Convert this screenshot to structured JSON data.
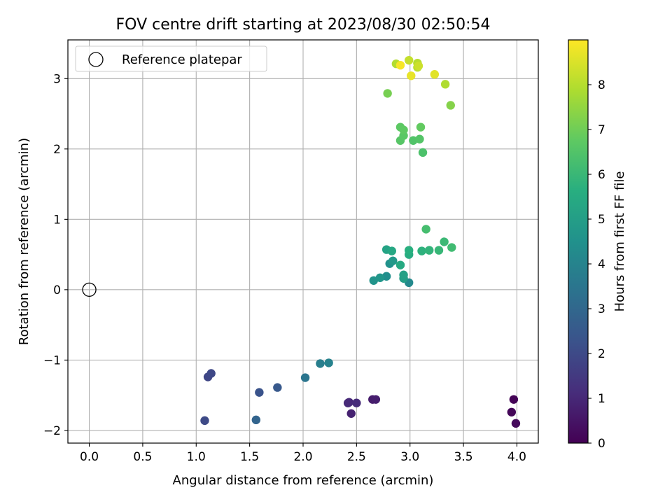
{
  "chart_data": {
    "type": "scatter",
    "title": "FOV centre drift starting at 2023/08/30 02:50:54",
    "xlabel": "Angular distance from reference (arcmin)",
    "ylabel": "Rotation from reference (arcmin)",
    "xlim": [
      -0.2,
      4.2
    ],
    "ylim": [
      -2.18,
      3.55
    ],
    "xticks": [
      0.0,
      0.5,
      1.0,
      1.5,
      2.0,
      2.5,
      3.0,
      3.5,
      4.0
    ],
    "xtick_labels": [
      "0.0",
      "0.5",
      "1.0",
      "1.5",
      "2.0",
      "2.5",
      "3.0",
      "3.5",
      "4.0"
    ],
    "yticks": [
      -2,
      -1,
      0,
      1,
      2,
      3
    ],
    "ytick_labels": [
      "−2",
      "−1",
      "0",
      "1",
      "2",
      "3"
    ],
    "grid": true,
    "legend": {
      "location": "upper-left",
      "label": "Reference platepar",
      "marker": "open-circle"
    },
    "reference_point": {
      "x": 0.0,
      "y": 0.0
    },
    "colorbar": {
      "label": "Hours from first FF file",
      "colormap": "viridis",
      "range": [
        0,
        9.0
      ],
      "ticks": [
        0,
        1,
        2,
        3,
        4,
        5,
        6,
        7,
        8
      ],
      "tick_labels": [
        "0",
        "1",
        "2",
        "3",
        "4",
        "5",
        "6",
        "7",
        "8"
      ]
    },
    "points": [
      {
        "x": 3.97,
        "y": -1.56,
        "h": 0.05
      },
      {
        "x": 3.95,
        "y": -1.74,
        "h": 0.12
      },
      {
        "x": 3.99,
        "y": -1.9,
        "h": 0.2
      },
      {
        "x": 2.65,
        "y": -1.56,
        "h": 0.7
      },
      {
        "x": 2.68,
        "y": -1.56,
        "h": 0.75
      },
      {
        "x": 2.45,
        "y": -1.76,
        "h": 0.85
      },
      {
        "x": 2.43,
        "y": -1.6,
        "h": 1.0
      },
      {
        "x": 2.42,
        "y": -1.61,
        "h": 1.05
      },
      {
        "x": 2.5,
        "y": -1.61,
        "h": 1.1
      },
      {
        "x": 1.11,
        "y": -1.24,
        "h": 1.9
      },
      {
        "x": 1.14,
        "y": -1.19,
        "h": 1.95
      },
      {
        "x": 1.08,
        "y": -1.86,
        "h": 2.0
      },
      {
        "x": 1.59,
        "y": -1.46,
        "h": 2.3
      },
      {
        "x": 1.76,
        "y": -1.39,
        "h": 2.5
      },
      {
        "x": 1.56,
        "y": -1.85,
        "h": 2.9
      },
      {
        "x": 2.02,
        "y": -1.25,
        "h": 3.5
      },
      {
        "x": 2.16,
        "y": -1.05,
        "h": 3.8
      },
      {
        "x": 2.24,
        "y": -1.04,
        "h": 3.95
      },
      {
        "x": 2.99,
        "y": 0.1,
        "h": 4.2
      },
      {
        "x": 2.78,
        "y": 0.19,
        "h": 4.4
      },
      {
        "x": 2.81,
        "y": 0.37,
        "h": 4.5
      },
      {
        "x": 2.66,
        "y": 0.13,
        "h": 4.6
      },
      {
        "x": 2.72,
        "y": 0.17,
        "h": 4.7
      },
      {
        "x": 2.84,
        "y": 0.41,
        "h": 4.8
      },
      {
        "x": 2.94,
        "y": 0.16,
        "h": 5.0
      },
      {
        "x": 2.94,
        "y": 0.21,
        "h": 5.1
      },
      {
        "x": 2.78,
        "y": 0.57,
        "h": 5.2
      },
      {
        "x": 2.83,
        "y": 0.55,
        "h": 5.35
      },
      {
        "x": 2.91,
        "y": 0.35,
        "h": 5.45
      },
      {
        "x": 2.99,
        "y": 0.5,
        "h": 5.55
      },
      {
        "x": 2.99,
        "y": 0.56,
        "h": 5.65
      },
      {
        "x": 3.11,
        "y": 0.55,
        "h": 5.75
      },
      {
        "x": 3.18,
        "y": 0.56,
        "h": 5.85
      },
      {
        "x": 3.27,
        "y": 0.56,
        "h": 5.95
      },
      {
        "x": 3.32,
        "y": 0.68,
        "h": 6.05
      },
      {
        "x": 3.39,
        "y": 0.6,
        "h": 6.15
      },
      {
        "x": 3.15,
        "y": 0.86,
        "h": 6.25
      },
      {
        "x": 3.12,
        "y": 1.95,
        "h": 6.4
      },
      {
        "x": 3.03,
        "y": 2.12,
        "h": 6.5
      },
      {
        "x": 3.09,
        "y": 2.14,
        "h": 6.55
      },
      {
        "x": 2.91,
        "y": 2.12,
        "h": 6.6
      },
      {
        "x": 2.94,
        "y": 2.19,
        "h": 6.65
      },
      {
        "x": 2.91,
        "y": 2.31,
        "h": 6.7
      },
      {
        "x": 2.94,
        "y": 2.27,
        "h": 6.75
      },
      {
        "x": 3.1,
        "y": 2.31,
        "h": 6.8
      },
      {
        "x": 2.79,
        "y": 2.79,
        "h": 7.1
      },
      {
        "x": 3.38,
        "y": 2.62,
        "h": 7.3
      },
      {
        "x": 3.33,
        "y": 2.92,
        "h": 7.9
      },
      {
        "x": 2.87,
        "y": 3.21,
        "h": 7.95
      },
      {
        "x": 3.07,
        "y": 3.22,
        "h": 8.0
      },
      {
        "x": 3.07,
        "y": 3.16,
        "h": 8.05
      },
      {
        "x": 2.99,
        "y": 3.26,
        "h": 8.2
      },
      {
        "x": 3.08,
        "y": 3.18,
        "h": 8.3
      },
      {
        "x": 3.23,
        "y": 3.06,
        "h": 8.6
      },
      {
        "x": 3.01,
        "y": 3.04,
        "h": 8.7
      },
      {
        "x": 2.91,
        "y": 3.19,
        "h": 8.9
      }
    ]
  }
}
